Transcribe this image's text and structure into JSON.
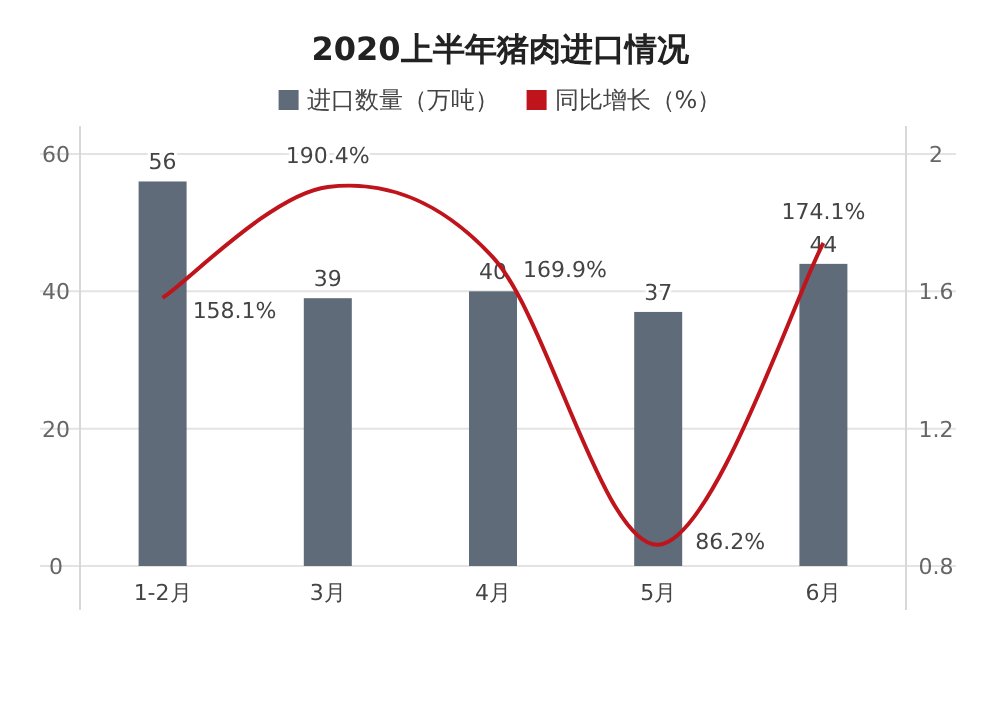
{
  "chart_data": {
    "type": "bar",
    "title": "2020上半年猪肉进口情况",
    "categories": [
      "1-2月",
      "3月",
      "4月",
      "5月",
      "6月"
    ],
    "series": [
      {
        "name": "进口数量（万吨）",
        "color": "#5f6b78",
        "values": [
          56,
          39,
          40,
          37,
          44
        ],
        "value_labels": [
          "56",
          "39",
          "40",
          "37",
          "44"
        ]
      },
      {
        "name": "同比增长（%）",
        "type": "line",
        "axis": "y2",
        "color": "#c0141c",
        "values": [
          1.581,
          1.904,
          1.699,
          0.862,
          1.741
        ],
        "value_labels": [
          "158.1%",
          "190.4%",
          "169.9%",
          "86.2%",
          "174.1%"
        ]
      }
    ],
    "ylim": [
      0,
      60
    ],
    "yticks": [
      0,
      20,
      40,
      60
    ],
    "y2lim": [
      0.8,
      2
    ],
    "y2ticks": [
      0.8,
      1.2,
      1.6,
      2
    ],
    "grid": "y",
    "legend": "top",
    "marker": "none",
    "line_style": "solid"
  }
}
